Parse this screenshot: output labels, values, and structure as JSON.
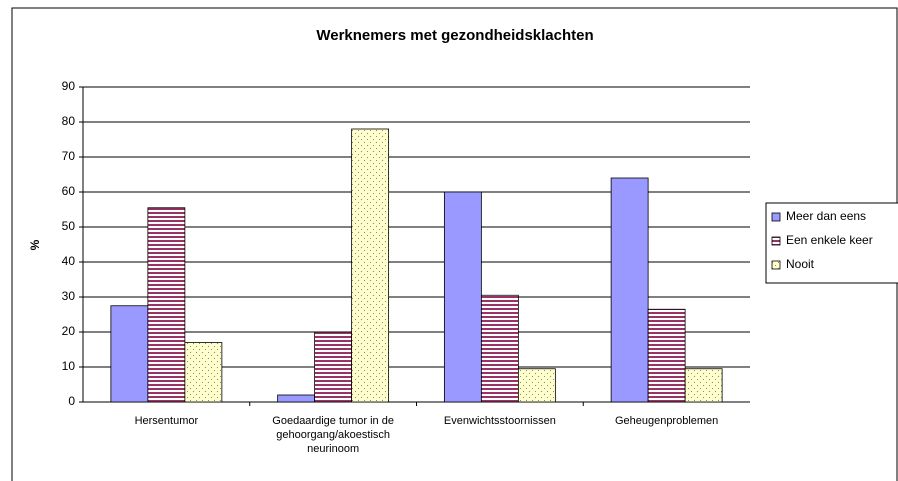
{
  "chart_data": {
    "type": "bar",
    "title": "Werknemers met gezondheidsklachten",
    "ylabel": "%",
    "categories": [
      "Hersentumor",
      "Goedaardige tumor in de gehoorgang/akoestisch neurinoom",
      "Evenwichtsstoornissen",
      "Geheugenproblemen"
    ],
    "series": [
      {
        "name": "Meer dan eens",
        "color": "#9999ff",
        "pattern": "solid",
        "values": [
          27.5,
          2,
          60,
          64
        ]
      },
      {
        "name": "Een enkele keer",
        "color": "#993366",
        "pattern": "horizontal-stripes",
        "values": [
          55.5,
          20,
          30.5,
          26.5
        ]
      },
      {
        "name": "Nooit",
        "color": "#ffffcc",
        "pattern": "dots",
        "values": [
          17,
          78,
          9.5,
          9.5
        ]
      }
    ],
    "ylim": [
      0,
      90
    ],
    "yticks": [
      0,
      10,
      20,
      30,
      40,
      50,
      60,
      70,
      80,
      90
    ],
    "grid": true,
    "legend": "right"
  }
}
